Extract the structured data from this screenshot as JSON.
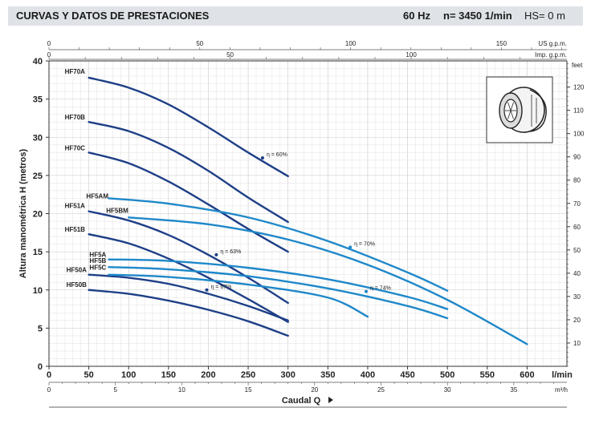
{
  "header": {
    "title": "CURVAS Y DATOS DE PRESTACIONES",
    "frequency": "60 Hz",
    "speed": "n= 3450  1/min",
    "hs": "HS= 0 m"
  },
  "chart_data": {
    "type": "line",
    "ylabel": "Altura manométrica H (metros)",
    "xlabel": "Caudal Q",
    "xlim": [
      0,
      650
    ],
    "ylim": [
      0,
      40
    ],
    "x_unit": "l/min",
    "x_ticks": [
      0,
      50,
      100,
      150,
      200,
      250,
      300,
      350,
      400,
      450,
      500,
      550,
      600
    ],
    "y_ticks": [
      0,
      5,
      10,
      15,
      20,
      25,
      30,
      35,
      40
    ],
    "secondary_axes": {
      "us_gpm": {
        "unit": "US g.p.m.",
        "ticks": [
          0,
          50,
          100,
          150
        ],
        "factor": 3.785
      },
      "imp_gpm": {
        "unit": "Imp. g.p.m.",
        "ticks": [
          0,
          50,
          100
        ],
        "factor": 4.546
      },
      "feet": {
        "unit": "feet",
        "ticks": [
          10,
          20,
          30,
          40,
          50,
          60,
          70,
          80,
          90,
          100,
          110,
          120
        ],
        "factor": 0.3048
      },
      "m3h": {
        "unit": "m³/h",
        "ticks": [
          0,
          5,
          10,
          15,
          20,
          25,
          30,
          35
        ],
        "factor": 16.667
      }
    },
    "grid": true,
    "series": [
      {
        "name": "HF70A",
        "color": "#1e3f87",
        "x": [
          50,
          100,
          150,
          200,
          250,
          300
        ],
        "y": [
          37.8,
          36.5,
          34.3,
          31.3,
          28.0,
          24.9
        ]
      },
      {
        "name": "HF70B",
        "color": "#1e3f87",
        "x": [
          50,
          100,
          150,
          200,
          250,
          300
        ],
        "y": [
          32.0,
          30.8,
          28.6,
          25.6,
          22.1,
          18.9
        ]
      },
      {
        "name": "HF70C",
        "color": "#1e3f87",
        "x": [
          50,
          100,
          150,
          200,
          250,
          300
        ],
        "y": [
          28.0,
          26.6,
          24.2,
          21.2,
          18.0,
          15.0
        ]
      },
      {
        "name": "HF51A",
        "color": "#1e3f87",
        "x": [
          50,
          100,
          150,
          200,
          250,
          300
        ],
        "y": [
          20.3,
          19.1,
          17.2,
          14.6,
          11.6,
          8.3
        ]
      },
      {
        "name": "HF51B",
        "color": "#1e3f87",
        "x": [
          50,
          100,
          150,
          200,
          250,
          300
        ],
        "y": [
          17.3,
          16.1,
          14.1,
          11.6,
          8.8,
          5.8
        ]
      },
      {
        "name": "HF50A",
        "color": "#1e3f87",
        "x": [
          50,
          100,
          150,
          200,
          250,
          300
        ],
        "y": [
          12.0,
          11.6,
          10.8,
          9.5,
          7.9,
          6.0
        ]
      },
      {
        "name": "HF50B",
        "color": "#1e3f87",
        "x": [
          50,
          100,
          150,
          200,
          250,
          300
        ],
        "y": [
          10.0,
          9.5,
          8.6,
          7.4,
          5.9,
          4.0
        ]
      },
      {
        "name": "HF5AM",
        "color": "#1f88c9",
        "x": [
          75,
          150,
          250,
          350,
          450,
          500
        ],
        "y": [
          22.0,
          21.3,
          19.5,
          16.4,
          12.3,
          9.9
        ]
      },
      {
        "name": "HF5BM",
        "color": "#1f88c9",
        "x": [
          100,
          200,
          300,
          400,
          500,
          600
        ],
        "y": [
          19.5,
          18.6,
          16.6,
          13.3,
          8.7,
          2.9
        ]
      },
      {
        "name": "HF5A",
        "color": "#1f88c9",
        "x": [
          75,
          150,
          250,
          350,
          450,
          500
        ],
        "y": [
          14.0,
          13.8,
          12.9,
          11.4,
          9.1,
          7.5
        ]
      },
      {
        "name": "HF5B",
        "color": "#1f88c9",
        "x": [
          75,
          150,
          250,
          350,
          450,
          500
        ],
        "y": [
          13.0,
          12.7,
          11.8,
          10.2,
          7.9,
          6.3
        ]
      },
      {
        "name": "HF5C",
        "color": "#1f88c9",
        "x": [
          75,
          150,
          250,
          350,
          400
        ],
        "y": [
          12.0,
          11.7,
          10.7,
          9.0,
          6.5
        ]
      }
    ],
    "efficiency_labels": [
      {
        "text": "η = 60%",
        "x": 268,
        "y": 27.3,
        "color": "#1e3f87"
      },
      {
        "text": "η = 63%",
        "x": 210,
        "y": 14.6,
        "color": "#1e3f87"
      },
      {
        "text": "η = 67%",
        "x": 198,
        "y": 10.0,
        "color": "#1e3f87"
      },
      {
        "text": "η = 70%",
        "x": 378,
        "y": 15.6,
        "color": "#1f88c9"
      },
      {
        "text": "η = 74%",
        "x": 398,
        "y": 9.8,
        "color": "#1f88c9"
      }
    ]
  }
}
